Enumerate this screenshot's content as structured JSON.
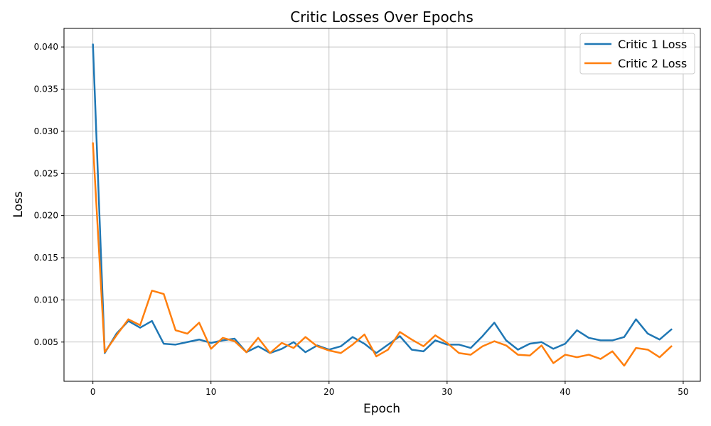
{
  "chart_data": {
    "type": "line",
    "title": "Critic Losses Over Epochs",
    "xlabel": "Epoch",
    "ylabel": "Loss",
    "xlim": [
      -2.45,
      51.45
    ],
    "ylim": [
      0.00035,
      0.0422
    ],
    "xticks": [
      0,
      10,
      20,
      30,
      40,
      50
    ],
    "yticks": [
      0.005,
      0.01,
      0.015,
      0.02,
      0.025,
      0.03,
      0.035,
      0.04
    ],
    "ytick_labels": [
      "0.005",
      "0.010",
      "0.015",
      "0.020",
      "0.025",
      "0.030",
      "0.035",
      "0.040"
    ],
    "grid": true,
    "legend_position": "top-right",
    "x": [
      0,
      1,
      2,
      3,
      4,
      5,
      6,
      7,
      8,
      9,
      10,
      11,
      12,
      13,
      14,
      15,
      16,
      17,
      18,
      19,
      20,
      21,
      22,
      23,
      24,
      25,
      26,
      27,
      28,
      29,
      30,
      31,
      32,
      33,
      34,
      35,
      36,
      37,
      38,
      39,
      40,
      41,
      42,
      43,
      44,
      45,
      46,
      47,
      48,
      49
    ],
    "series": [
      {
        "name": "Critic 1 Loss",
        "color": "#1f77b4",
        "values": [
          0.0403,
          0.0037,
          0.006,
          0.0075,
          0.0067,
          0.0075,
          0.0048,
          0.0047,
          0.005,
          0.0053,
          0.0049,
          0.0052,
          0.0054,
          0.0038,
          0.0045,
          0.0037,
          0.0042,
          0.005,
          0.0038,
          0.0046,
          0.0041,
          0.0045,
          0.0056,
          0.0048,
          0.0037,
          0.0047,
          0.0057,
          0.0041,
          0.0039,
          0.0052,
          0.0047,
          0.0047,
          0.0043,
          0.0057,
          0.0073,
          0.0052,
          0.0041,
          0.0048,
          0.005,
          0.0042,
          0.0048,
          0.0064,
          0.0055,
          0.0052,
          0.0052,
          0.0056,
          0.0077,
          0.006,
          0.0053,
          0.0065
        ]
      },
      {
        "name": "Critic 2 Loss",
        "color": "#ff7f0e",
        "values": [
          0.0286,
          0.0038,
          0.0058,
          0.0077,
          0.007,
          0.0111,
          0.0107,
          0.0064,
          0.006,
          0.0073,
          0.0042,
          0.0055,
          0.0051,
          0.0038,
          0.0055,
          0.0037,
          0.0049,
          0.0043,
          0.0056,
          0.0045,
          0.004,
          0.0037,
          0.0047,
          0.0059,
          0.0033,
          0.0041,
          0.0062,
          0.0053,
          0.0045,
          0.0058,
          0.0049,
          0.0037,
          0.0035,
          0.0045,
          0.0051,
          0.0046,
          0.0035,
          0.0034,
          0.0046,
          0.0025,
          0.0035,
          0.0032,
          0.0035,
          0.003,
          0.0039,
          0.0022,
          0.0043,
          0.0041,
          0.0032,
          0.0045
        ]
      }
    ]
  }
}
